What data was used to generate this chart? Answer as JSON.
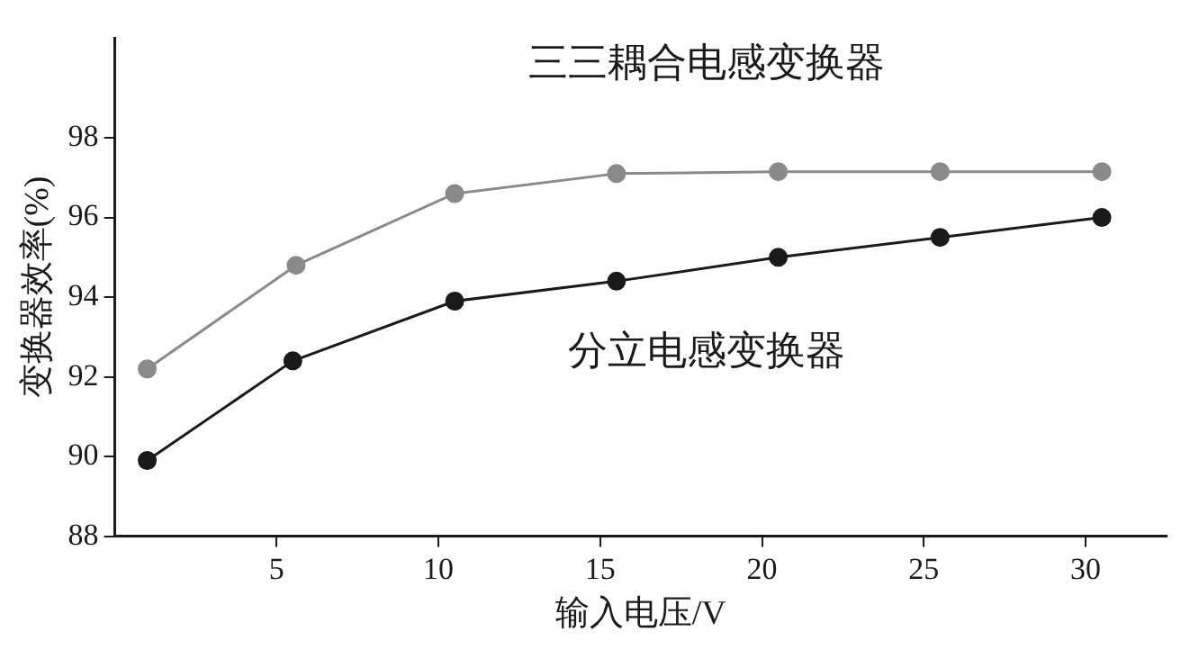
{
  "chart_data": {
    "type": "line",
    "xlabel": "输入电压/V",
    "ylabel": "变换器效率(%)",
    "xlim": [
      0,
      32.5
    ],
    "xticks": [
      5,
      10,
      15,
      20,
      25,
      30
    ],
    "ylim": [
      88,
      100.5
    ],
    "yticks": [
      88,
      90,
      92,
      94,
      96,
      98
    ],
    "grid": false,
    "legend": false,
    "marker": "circle",
    "line_style": "solid",
    "series": [
      {
        "name": "三三耦合电感变换器",
        "color": "#8a8a8a",
        "x": [
          1,
          5.6,
          10.5,
          15.5,
          20.5,
          25.5,
          30.5
        ],
        "values": [
          92.2,
          94.8,
          96.6,
          97.1,
          97.15,
          97.15,
          97.15
        ]
      },
      {
        "name": "分立电感变换器",
        "color": "#1a1a1a",
        "x": [
          1,
          5.5,
          10.5,
          15.5,
          20.5,
          25.5,
          30.5
        ],
        "values": [
          89.9,
          92.4,
          93.9,
          94.4,
          95.0,
          95.5,
          96.0
        ]
      }
    ]
  }
}
